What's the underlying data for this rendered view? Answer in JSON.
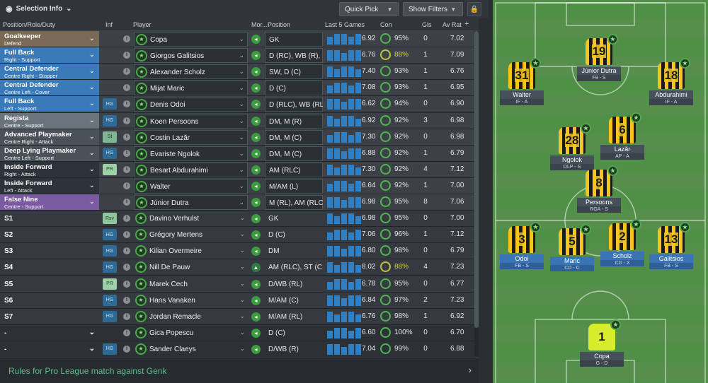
{
  "toolbar": {
    "selection_info": "Selection Info",
    "quick_pick": "Quick Pick",
    "show_filters": "Show Filters"
  },
  "headers": {
    "position_role": "Position/Role/Duty",
    "inf": "Inf",
    "player": "Player",
    "morale": "Mor...",
    "position": "Position",
    "last5": "Last 5 Games",
    "con": "Con",
    "gls": "Gls",
    "avrat": "Av Rat",
    "add": "+"
  },
  "rows": [
    {
      "role": "Goalkeeper",
      "duty": "Defend",
      "color": "#7a6a55",
      "inf": "",
      "player": "Copa",
      "pos": "GK",
      "avg": "6.92",
      "con": "95%",
      "gls": "0",
      "rat": "7.02"
    },
    {
      "role": "Full Back",
      "duty": "Right - Support",
      "color": "#3a7ab8",
      "inf": "",
      "player": "Giorgos Galitsios",
      "pos": "D (RC), WB (R), ...",
      "avg": "6.76",
      "con": "88%",
      "gls": "1",
      "rat": "7.09"
    },
    {
      "role": "Central Defender",
      "duty": "Centre Right - Stopper",
      "color": "#3a7ab8",
      "inf": "",
      "player": "Alexander Scholz",
      "pos": "SW, D (C)",
      "avg": "7.40",
      "con": "93%",
      "gls": "1",
      "rat": "6.76"
    },
    {
      "role": "Central Defender",
      "duty": "Centre Left - Cover",
      "color": "#3a7ab8",
      "inf": "",
      "player": "Mijat Maric",
      "pos": "D (C)",
      "avg": "7.08",
      "con": "93%",
      "gls": "1",
      "rat": "6.95"
    },
    {
      "role": "Full Back",
      "duty": "Left - Support",
      "color": "#3a7ab8",
      "inf": "HG",
      "player": "Denis Odoi",
      "pos": "D (RLC), WB (RL...",
      "avg": "6.62",
      "con": "94%",
      "gls": "0",
      "rat": "6.90"
    },
    {
      "role": "Regista",
      "duty": "Centre - Support",
      "color": "#6b747c",
      "inf": "HG",
      "player": "Koen Persoons",
      "pos": "DM, M (R)",
      "avg": "6.92",
      "con": "92%",
      "gls": "3",
      "rat": "6.98"
    },
    {
      "role": "Advanced Playmaker",
      "duty": "Centre Right - Attack",
      "color": "#4b5158",
      "inf": "St",
      "player": "Costin Lazăr",
      "pos": "DM, M (C)",
      "avg": "7.30",
      "con": "92%",
      "gls": "0",
      "rat": "6.98"
    },
    {
      "role": "Deep Lying Playmaker",
      "duty": "Centre Left - Support",
      "color": "#4b5158",
      "inf": "HG",
      "player": "Evariste Ngolok",
      "pos": "DM, M (C)",
      "avg": "6.88",
      "con": "92%",
      "gls": "1",
      "rat": "6.79"
    },
    {
      "role": "Inside Forward",
      "duty": "Right - Attack",
      "color": "#2c333a",
      "inf": "PR",
      "player": "Besart Abdurahimi",
      "pos": "AM (RLC)",
      "avg": "7.30",
      "con": "92%",
      "gls": "4",
      "rat": "7.12"
    },
    {
      "role": "Inside Forward",
      "duty": "Left - Attack",
      "color": "#2c333a",
      "inf": "",
      "player": "Walter",
      "pos": "M/AM (L)",
      "avg": "6.64",
      "con": "92%",
      "gls": "1",
      "rat": "7.00"
    },
    {
      "role": "False Nine",
      "duty": "Centre - Support",
      "color": "#7a5aa0",
      "inf": "",
      "player": "Júnior Dutra",
      "pos": "M (RL), AM (RLC...",
      "avg": "6.98",
      "con": "95%",
      "gls": "8",
      "rat": "7.06"
    },
    {
      "role": "S1",
      "duty": "",
      "color": "",
      "inf": "Rsv",
      "player": "Davino Verhulst",
      "pos": "GK",
      "avg": "6.98",
      "con": "95%",
      "gls": "0",
      "rat": "7.00"
    },
    {
      "role": "S2",
      "duty": "",
      "color": "",
      "inf": "HG",
      "player": "Grégory Mertens",
      "pos": "D (C)",
      "avg": "7.06",
      "con": "96%",
      "gls": "1",
      "rat": "7.12"
    },
    {
      "role": "S3",
      "duty": "",
      "color": "",
      "inf": "HG",
      "player": "Kilian Overmeire",
      "pos": "DM",
      "avg": "6.80",
      "con": "98%",
      "gls": "0",
      "rat": "6.79"
    },
    {
      "role": "S4",
      "duty": "",
      "color": "",
      "inf": "HG",
      "player": "Nill De Pauw",
      "pos": "AM (RLC), ST (C)",
      "avg": "8.02",
      "con": "88%",
      "gls": "4",
      "rat": "7.23"
    },
    {
      "role": "S5",
      "duty": "",
      "color": "",
      "inf": "PR",
      "player": "Marek Cech",
      "pos": "D/WB (RL)",
      "avg": "6.78",
      "con": "95%",
      "gls": "0",
      "rat": "6.77"
    },
    {
      "role": "S6",
      "duty": "",
      "color": "",
      "inf": "HG",
      "player": "Hans Vanaken",
      "pos": "M/AM (C)",
      "avg": "6.84",
      "con": "97%",
      "gls": "2",
      "rat": "7.23"
    },
    {
      "role": "S7",
      "duty": "",
      "color": "",
      "inf": "HG",
      "player": "Jordan Remacle",
      "pos": "M/AM (RL)",
      "avg": "6.76",
      "con": "98%",
      "gls": "1",
      "rat": "6.92"
    },
    {
      "role": "-",
      "duty": "",
      "color": "",
      "inf": "",
      "player": "Gica Popescu",
      "pos": "D (C)",
      "avg": "6.60",
      "con": "100%",
      "gls": "0",
      "rat": "6.70"
    },
    {
      "role": "-",
      "duty": "",
      "color": "",
      "inf": "HG",
      "player": "Sander Claeys",
      "pos": "D/WB (R)",
      "avg": "7.04",
      "con": "99%",
      "gls": "0",
      "rat": "6.88"
    }
  ],
  "rules_text": "Rules for Pro League match against Genk",
  "pitch": [
    {
      "num": "19",
      "name": "Júnior Dutra",
      "role": "F9 - S",
      "blue": false
    },
    {
      "num": "31",
      "name": "Walter",
      "role": "IF - A",
      "blue": false
    },
    {
      "num": "18",
      "name": "Abdurahimi",
      "role": "IF - A",
      "blue": false
    },
    {
      "num": "28",
      "name": "Ngolok",
      "role": "DLP - S",
      "blue": false
    },
    {
      "num": "6",
      "name": "Lazăr",
      "role": "AP - A",
      "blue": false
    },
    {
      "num": "8",
      "name": "Persoons",
      "role": "RGA - S",
      "blue": false
    },
    {
      "num": "3",
      "name": "Odoi",
      "role": "FB - S",
      "blue": true
    },
    {
      "num": "5",
      "name": "Maric",
      "role": "CD - C",
      "blue": true
    },
    {
      "num": "2",
      "name": "Scholz",
      "role": "CD - X",
      "blue": true
    },
    {
      "num": "13",
      "name": "Galitsios",
      "role": "FB - S",
      "blue": true
    },
    {
      "num": "1",
      "name": "Copa",
      "role": "G - D",
      "blue": false
    }
  ]
}
